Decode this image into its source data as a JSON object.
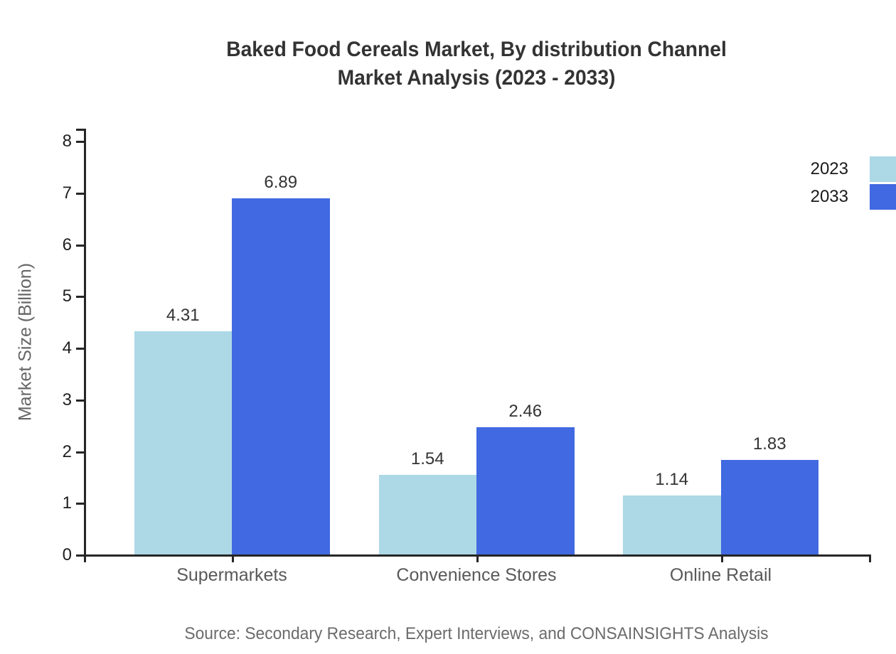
{
  "title": {
    "line1": "Baked Food Cereals Market, By distribution Channel",
    "line2": "Market Analysis (2023 - 2033)"
  },
  "source_note": "Source: Secondary Research, Expert Interviews, and CONSAINSIGHTS Analysis",
  "chart_data": {
    "type": "bar",
    "categories": [
      "Supermarkets",
      "Convenience Stores",
      "Online Retail"
    ],
    "series": [
      {
        "name": "2023",
        "color": "#ADD8E6",
        "values": [
          4.31,
          1.54,
          1.14
        ]
      },
      {
        "name": "2033",
        "color": "#4169E1",
        "values": [
          6.89,
          2.46,
          1.83
        ]
      }
    ],
    "title": "Baked Food Cereals Market, By distribution Channel Market Analysis (2023 - 2033)",
    "xlabel": "",
    "ylabel": "Market Size (Billion)",
    "ylim": [
      0,
      8
    ],
    "yticks": [
      0,
      1,
      2,
      3,
      4,
      5,
      6,
      7,
      8
    ],
    "grid": false,
    "legend_position": "outside-right",
    "value_label_decimals": 2
  },
  "colors": {
    "series_2023": "#ADD8E6",
    "series_2033": "#4169E1",
    "axis": "#262626",
    "title_text": "#333333",
    "category_text": "#595959",
    "source_text": "#6b6b6b"
  }
}
